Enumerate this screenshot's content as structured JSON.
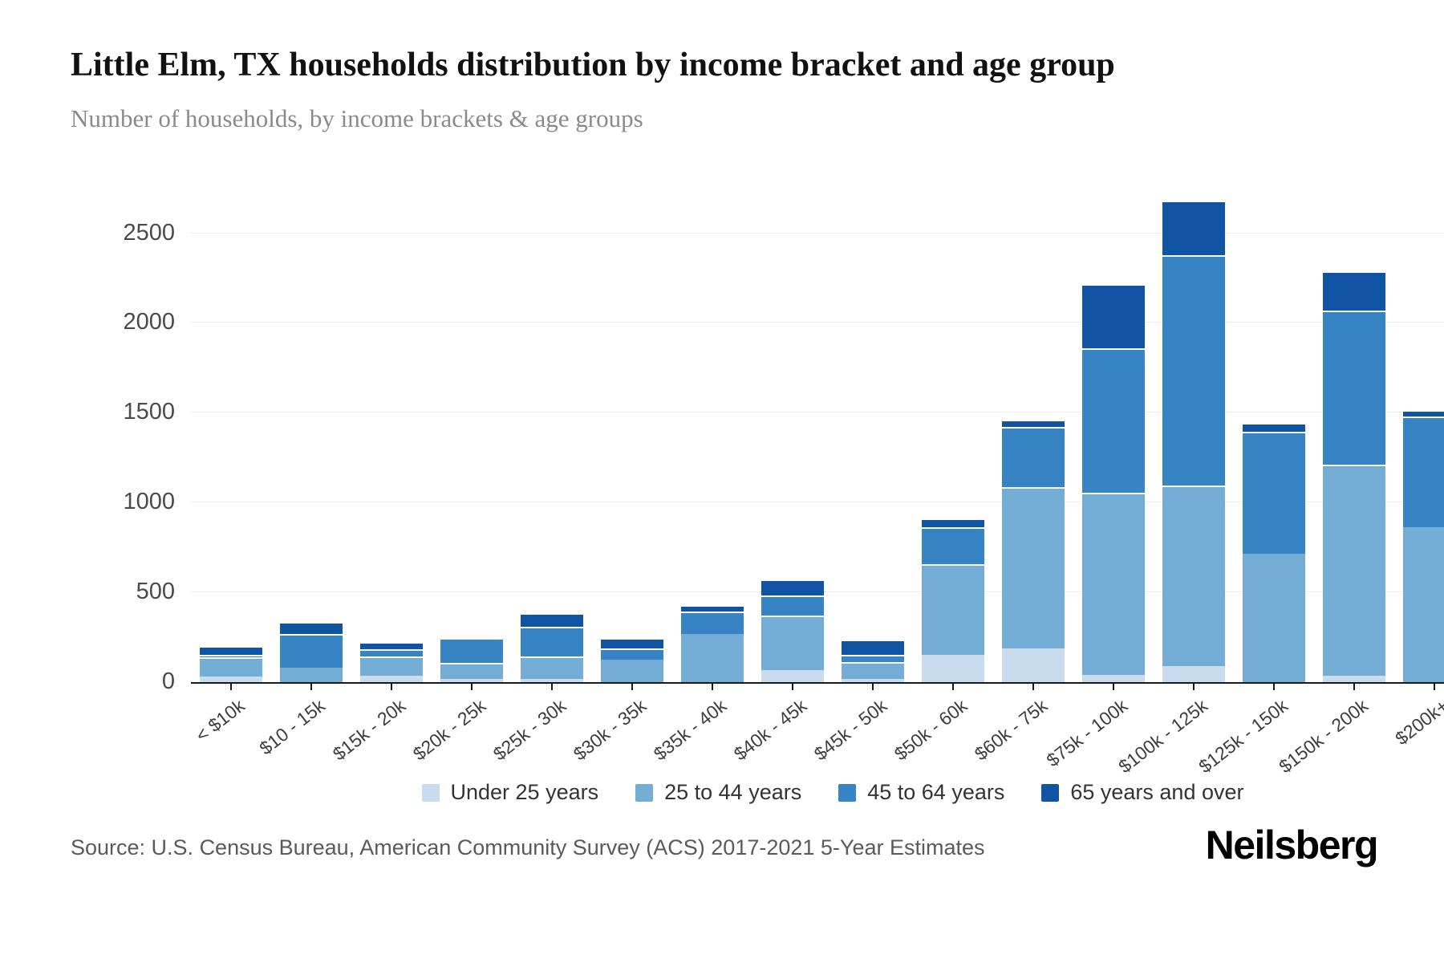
{
  "header": {
    "title": "Little Elm, TX households distribution by income bracket and age group",
    "subtitle": "Number of households, by income brackets & age groups"
  },
  "chart_data": {
    "type": "bar",
    "stacked": true,
    "title": "Little Elm, TX households distribution by income bracket and age group",
    "xlabel": "",
    "ylabel": "Number of households",
    "categories": [
      "< $10k",
      "$10 - 15k",
      "$15k - 20k",
      "$20k - 25k",
      "$25k - 30k",
      "$30k - 35k",
      "$35k - 40k",
      "$40k - 45k",
      "$45k - 50k",
      "$50k - 60k",
      "$60k - 75k",
      "$75k - 100k",
      "$100k - 125k",
      "$125k - 150k",
      "$150k - 200k",
      "$200k+"
    ],
    "series": [
      {
        "name": "Under 25 years",
        "color": "#c9dcee",
        "values": [
          30,
          0,
          35,
          15,
          15,
          0,
          0,
          65,
          15,
          150,
          185,
          40,
          90,
          0,
          35,
          0
        ]
      },
      {
        "name": "25 to 44 years",
        "color": "#73add5",
        "values": [
          105,
          80,
          105,
          90,
          125,
          125,
          265,
          305,
          95,
          505,
          900,
          1015,
          1005,
          715,
          1175,
          860
        ]
      },
      {
        "name": "45 to 64 years",
        "color": "#3684c4",
        "values": [
          15,
          185,
          40,
          140,
          165,
          60,
          125,
          110,
          40,
          205,
          335,
          805,
          1285,
          680,
          860,
          620
        ]
      },
      {
        "name": "65 years and over",
        "color": "#0f55a4",
        "values": [
          50,
          70,
          40,
          0,
          80,
          60,
          40,
          90,
          85,
          50,
          40,
          355,
          300,
          50,
          220,
          35
        ]
      }
    ],
    "totals": [
      200,
      335,
      220,
      245,
      385,
      245,
      430,
      570,
      235,
      910,
      1460,
      2215,
      2680,
      1445,
      2290,
      1515
    ],
    "yticks": [
      0,
      500,
      1000,
      1500,
      2000,
      2500
    ],
    "ytick_labels": [
      "0",
      "500",
      "1000",
      "1500",
      "2000",
      "2500"
    ],
    "ylim": [
      0,
      2860
    ],
    "grid": true,
    "grid_color": "#ececec",
    "axis_color": "#1a1a1a",
    "legend_position": "bottom"
  },
  "footer": {
    "source": "Source: U.S. Census Bureau, American Community Survey (ACS) 2017-2021 5-Year Estimates",
    "brand": "Neilsberg"
  }
}
